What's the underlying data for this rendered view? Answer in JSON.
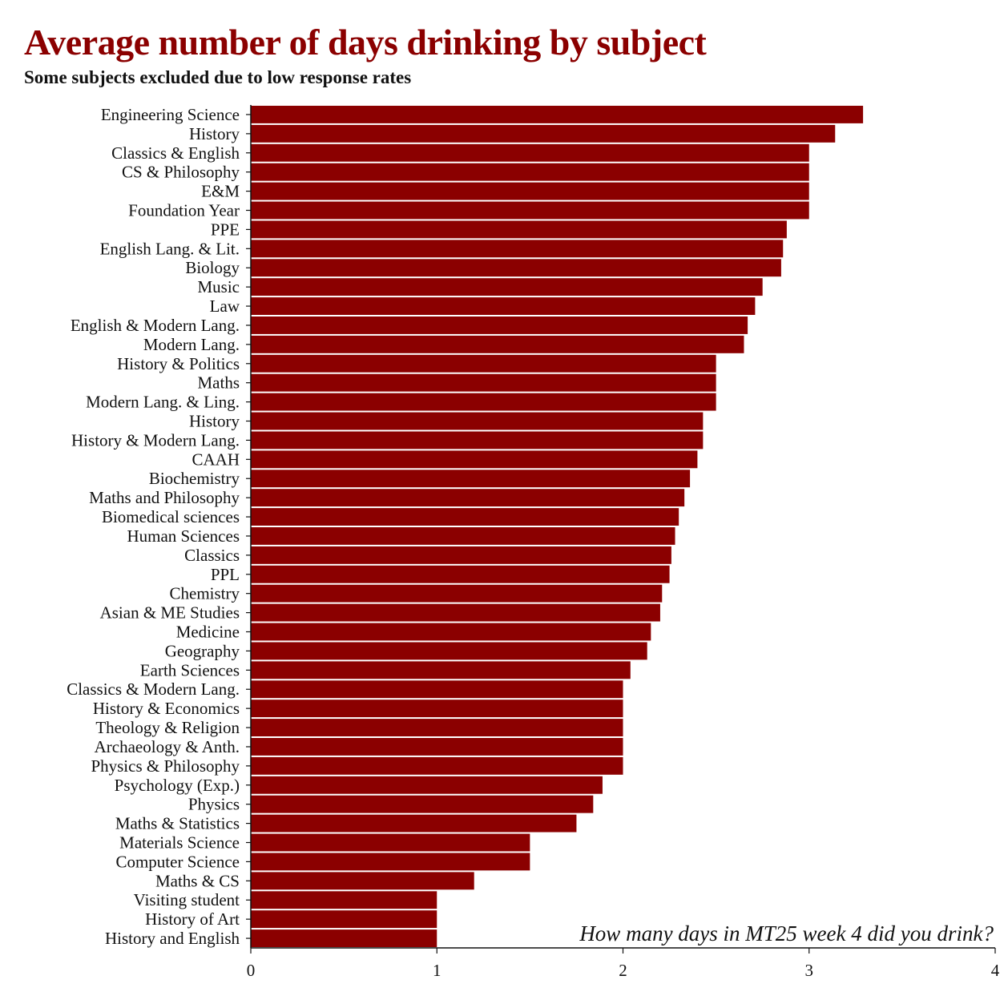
{
  "title": "Average number of days drinking by subject",
  "subtitle": "Some subjects excluded due to low response rates",
  "annotation": "How many days in MT25 week 4 did you drink?",
  "colors": {
    "bar": "#8b0000",
    "title": "#8b0000",
    "axis": "#111111"
  },
  "chart_data": {
    "type": "bar",
    "orientation": "horizontal",
    "title": "Average number of days drinking by subject",
    "subtitle": "Some subjects excluded due to low response rates",
    "xlabel": "",
    "ylabel": "",
    "xlim": [
      0,
      4
    ],
    "xticks": [
      0,
      1,
      2,
      3,
      4
    ],
    "grid": false,
    "categories": [
      "Engineering Science",
      "History",
      "Classics & English",
      "CS & Philosophy",
      "E&M",
      "Foundation Year",
      "PPE",
      "English Lang. & Lit.",
      "Biology",
      "Music",
      "Law",
      "English & Modern Lang.",
      "Modern Lang.",
      "History & Politics",
      "Maths",
      "Modern Lang. & Ling.",
      "History",
      "History & Modern Lang.",
      "CAAH",
      "Biochemistry",
      "Maths and Philosophy",
      "Biomedical sciences",
      "Human Sciences",
      "Classics",
      "PPL",
      "Chemistry",
      "Asian & ME Studies",
      "Medicine",
      "Geography",
      "Earth Sciences",
      "Classics & Modern Lang.",
      "History & Economics",
      "Theology & Religion",
      "Archaeology & Anth.",
      "Physics & Philosophy",
      "Psychology (Exp.)",
      "Physics",
      "Maths & Statistics",
      "Materials Science",
      "Computer Science",
      "Maths & CS",
      "Visiting student",
      "History of Art",
      "History and English"
    ],
    "values": [
      3.29,
      3.14,
      3.0,
      3.0,
      3.0,
      3.0,
      2.88,
      2.86,
      2.85,
      2.75,
      2.71,
      2.67,
      2.65,
      2.5,
      2.5,
      2.5,
      2.43,
      2.43,
      2.4,
      2.36,
      2.33,
      2.3,
      2.28,
      2.26,
      2.25,
      2.21,
      2.2,
      2.15,
      2.13,
      2.04,
      2.0,
      2.0,
      2.0,
      2.0,
      2.0,
      1.89,
      1.84,
      1.75,
      1.5,
      1.5,
      1.2,
      1.0,
      1.0,
      1.0
    ]
  }
}
